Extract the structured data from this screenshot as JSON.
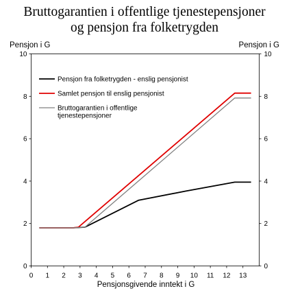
{
  "chart_data": {
    "type": "line",
    "title_lines": [
      "Bruttogarantien i offentlige tjenestepensjoner",
      "og pensjon fra folketrygden"
    ],
    "xlabel": "Pensjonsgivende inntekt i G",
    "ylabel_left": "Pensjon i G",
    "ylabel_right": "Pensjon i G",
    "xlim": [
      0,
      14
    ],
    "ylim": [
      0,
      10
    ],
    "xticks": [
      "0",
      "1",
      "2",
      "3",
      "4",
      "5",
      "6",
      "7",
      "8",
      "9",
      "10",
      "11",
      "12",
      "13"
    ],
    "yticks": [
      "0",
      "2",
      "4",
      "6",
      "8",
      "10"
    ],
    "grid": false,
    "legend_position": "top-left",
    "series": [
      {
        "name": "Pensjon fra folketrygden - enslig pensjonist",
        "color": "#000000",
        "width": 1.8,
        "points": [
          [
            0.5,
            1.8
          ],
          [
            2.6,
            1.8
          ],
          [
            3.3,
            1.83
          ],
          [
            6.6,
            3.1
          ],
          [
            9.5,
            3.53
          ],
          [
            12.5,
            3.95
          ],
          [
            13.5,
            3.95
          ]
        ]
      },
      {
        "name": "Samlet pensjon til enslig pensjonist",
        "color": "#e00000",
        "width": 1.8,
        "points": [
          [
            0.5,
            1.8
          ],
          [
            2.6,
            1.8
          ],
          [
            2.9,
            1.83
          ],
          [
            12.5,
            8.15
          ],
          [
            13.5,
            8.15
          ]
        ]
      },
      {
        "name": "Bruttogarantien i offentlige tjenestepensjoner",
        "legend_lines": [
          "Bruttogarantien i offentlige",
          "tjenestepensjoner"
        ],
        "color": "#808080",
        "width": 1.3,
        "points": [
          [
            0.5,
            1.8
          ],
          [
            2.6,
            1.8
          ],
          [
            3.3,
            1.83
          ],
          [
            12.5,
            7.92
          ],
          [
            13.5,
            7.92
          ]
        ]
      }
    ]
  }
}
